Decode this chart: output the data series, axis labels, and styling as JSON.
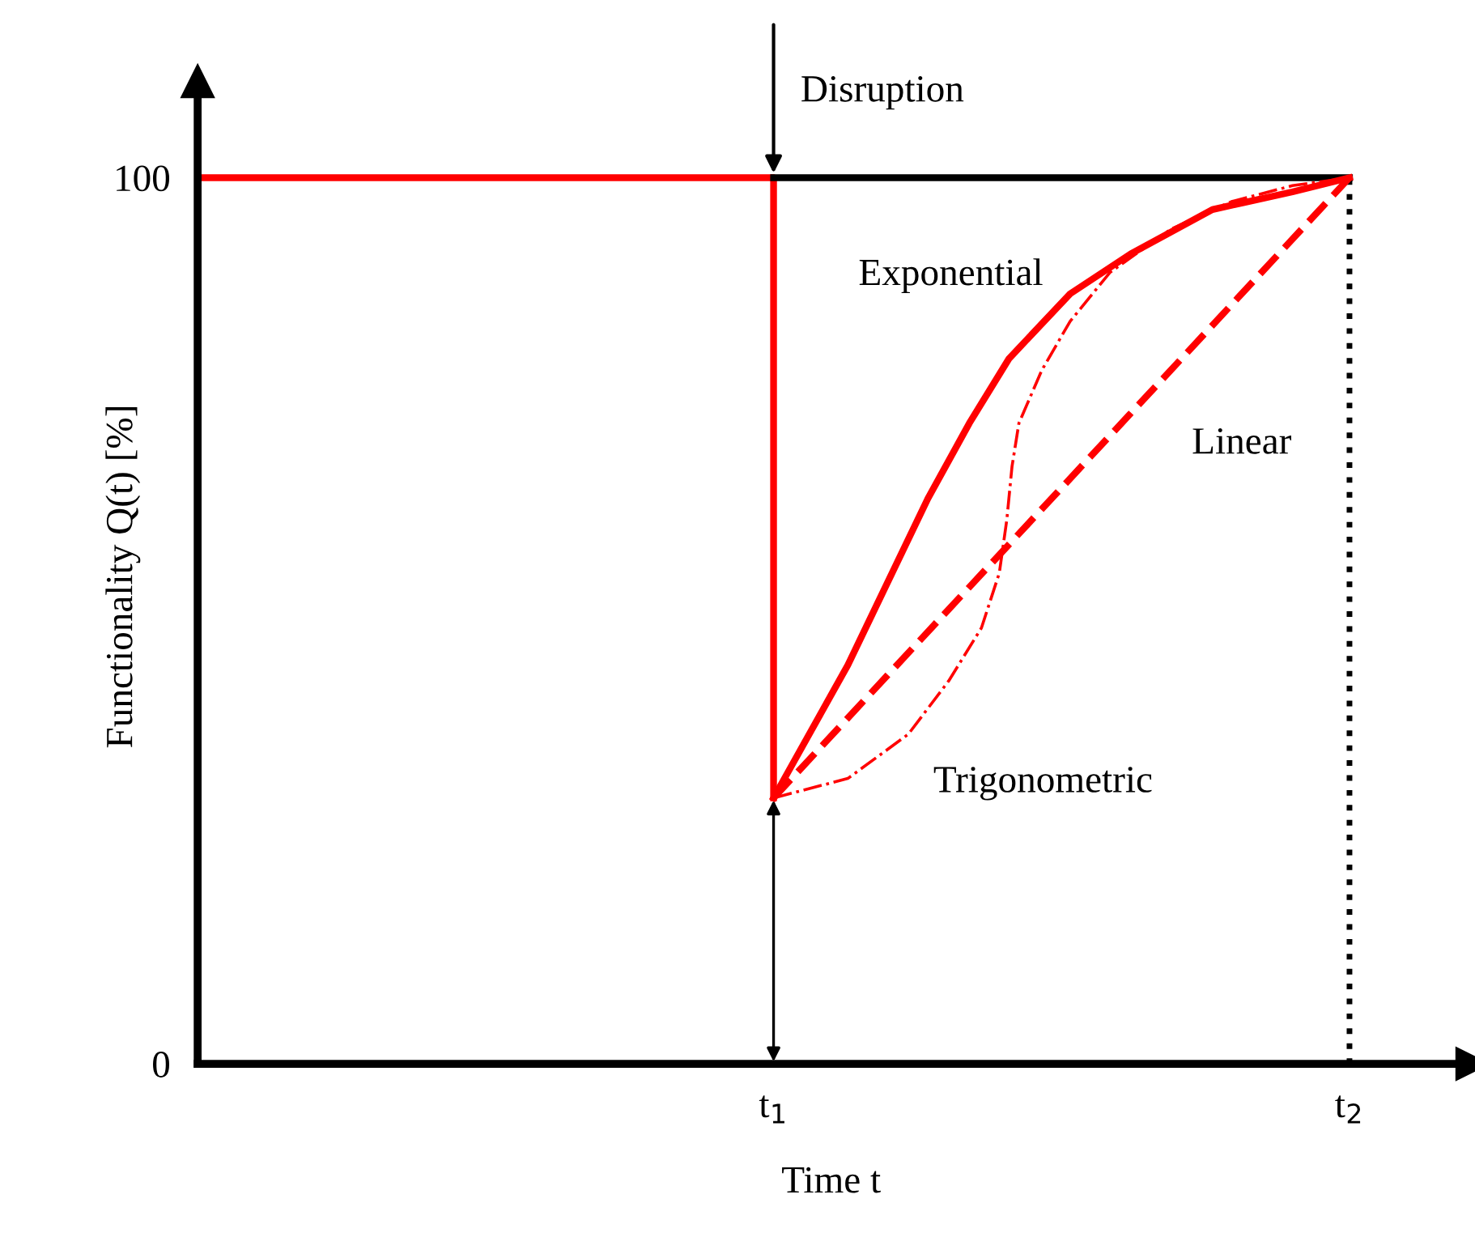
{
  "chart_data": {
    "type": "line",
    "xlabel": "Time t",
    "ylabel": "Functionality Q(t) [%]",
    "xlim": [
      0,
      2.2
    ],
    "ylim": [
      0,
      110
    ],
    "xticks": [
      {
        "value": 1,
        "label": "t$_{1}$"
      },
      {
        "value": 2,
        "label": "t$_{2}$"
      }
    ],
    "yticks": [
      0,
      100
    ],
    "grid": false,
    "legend": false,
    "marker": "none",
    "series": [
      {
        "color": "#ff0000",
        "line_style": "solid",
        "x": [
          0,
          1,
          1
        ],
        "values": [
          100,
          100,
          30
        ]
      },
      {
        "color": "#000000",
        "line_style": "solid",
        "x": [
          1,
          2
        ],
        "values": [
          100,
          100
        ]
      },
      {
        "color": "#000000",
        "line_style": "dotted",
        "x": [
          2,
          2
        ],
        "values": [
          0,
          100
        ]
      },
      {
        "name": "Exponential",
        "color": "#ff0000",
        "line_style": "solid",
        "x": [
          1,
          1.129,
          1.268,
          1.34,
          1.409,
          1.515,
          1.62,
          1.762,
          1.901,
          2
        ],
        "values": [
          30,
          45,
          63.8,
          72.3,
          79.6,
          86.9,
          91.4,
          96.4,
          98.4,
          100
        ]
      },
      {
        "name": "Linear",
        "color": "#ff0000",
        "line_style": "dashed",
        "x": [
          1,
          2
        ],
        "values": [
          30,
          100
        ]
      },
      {
        "name": "Trigonometric",
        "color": "#ff0000",
        "line_style": "dashdot",
        "x": [
          1,
          1.129,
          1.234,
          1.304,
          1.361,
          1.392,
          1.405,
          1.414,
          1.426,
          1.466,
          1.515,
          1.584,
          1.69,
          1.795,
          1.901,
          2
        ],
        "values": [
          30,
          32.2,
          37.2,
          43.2,
          49.2,
          55.4,
          61.4,
          67.4,
          72.3,
          78.3,
          83.8,
          89.3,
          94.2,
          97.3,
          99.1,
          100
        ]
      }
    ],
    "annotations": [
      {
        "text": "Disruption",
        "x": 1,
        "y": 100
      }
    ]
  }
}
